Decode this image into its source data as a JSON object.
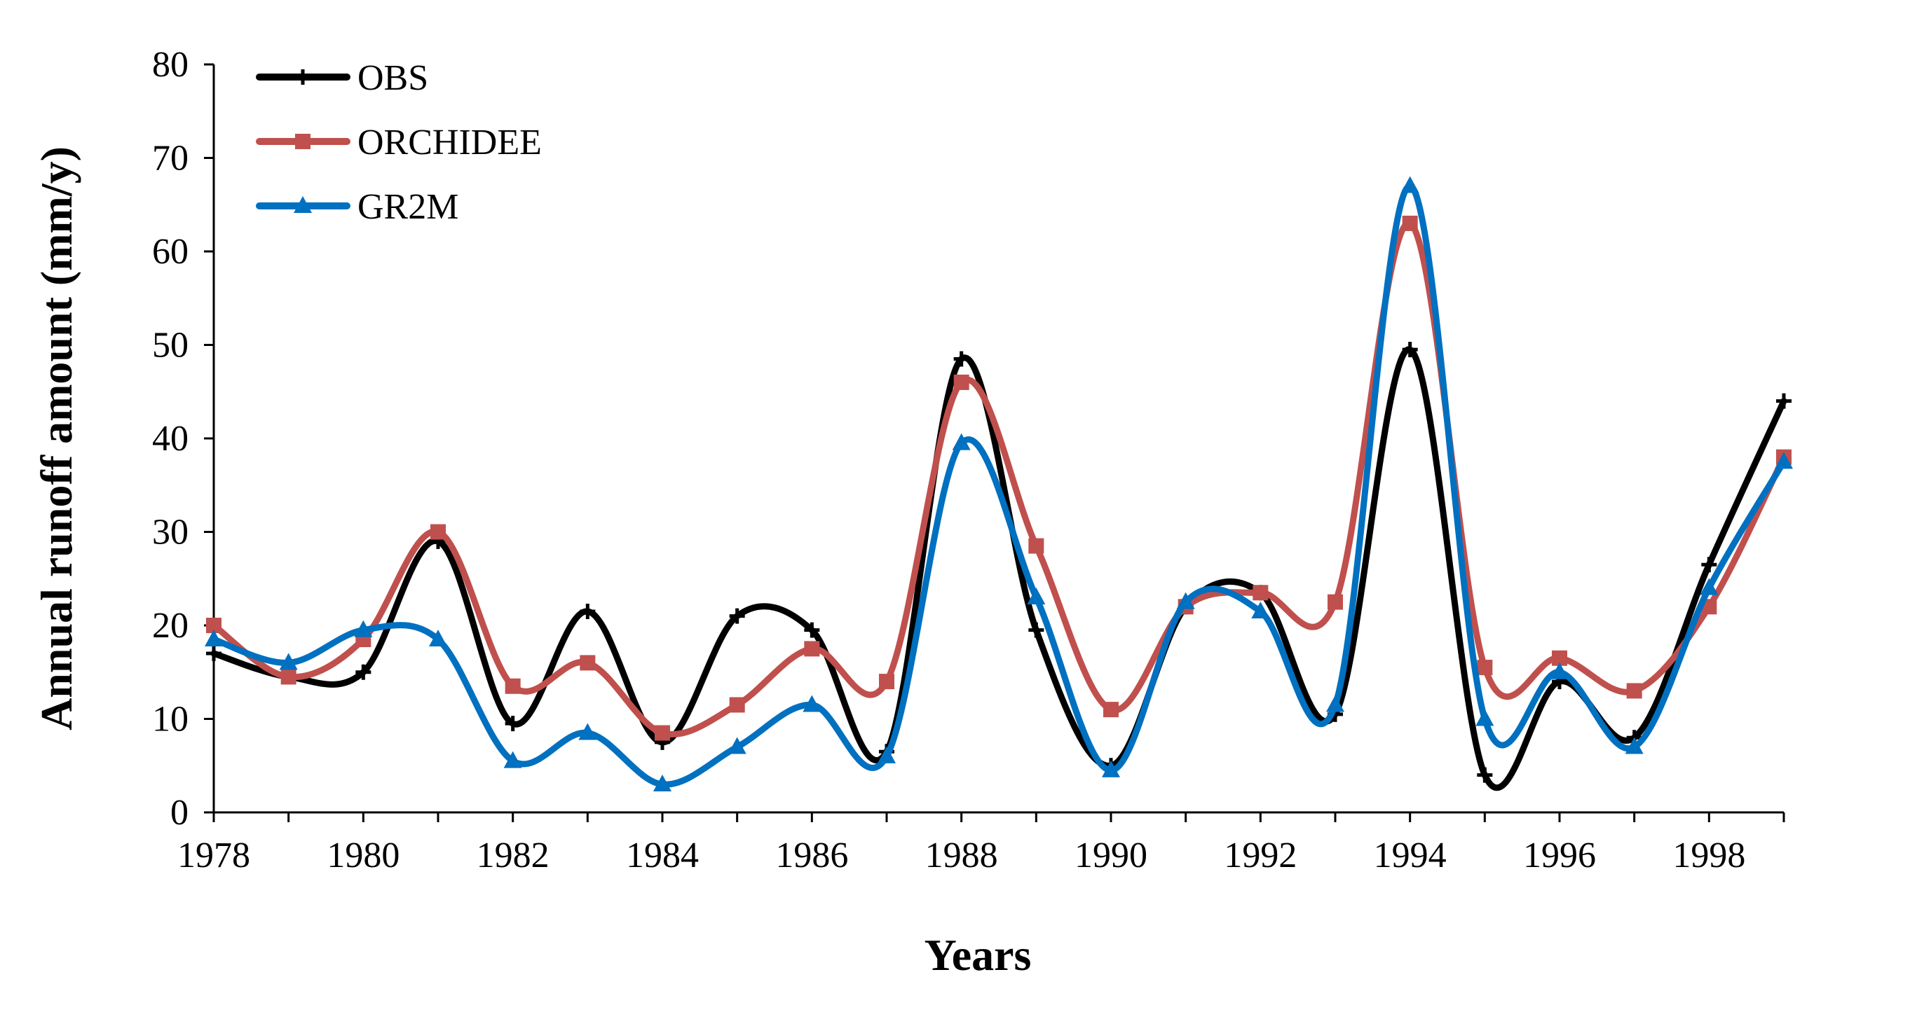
{
  "chart_data": {
    "type": "line",
    "title": "",
    "xlabel": "Years",
    "ylabel": "Annual runoff amount (mm/y)",
    "x": [
      1978,
      1979,
      1980,
      1981,
      1982,
      1983,
      1984,
      1985,
      1986,
      1987,
      1988,
      1989,
      1990,
      1991,
      1992,
      1993,
      1994,
      1995,
      1996,
      1997,
      1998,
      1999
    ],
    "xlim": [
      1978,
      1999
    ],
    "ylim": [
      0,
      80
    ],
    "x_ticks": [
      "1978",
      "1980",
      "1982",
      "1984",
      "1986",
      "1988",
      "1990",
      "1992",
      "1994",
      "1996",
      "1998"
    ],
    "y_ticks": [
      "0",
      "10",
      "20",
      "30",
      "40",
      "50",
      "60",
      "70",
      "80"
    ],
    "grid": false,
    "legend_position": "top-left",
    "series": [
      {
        "name": "OBS",
        "color": "#000000",
        "marker": "plus",
        "values": [
          17,
          14.5,
          15,
          29,
          9.5,
          21.5,
          7.5,
          21,
          19.5,
          6.5,
          48.5,
          19.5,
          5,
          22,
          23.5,
          10.5,
          49.5,
          4,
          14,
          8,
          26.5,
          44
        ]
      },
      {
        "name": "ORCHIDEE",
        "color": "#c0504d",
        "marker": "square",
        "values": [
          20,
          14.5,
          18.5,
          30,
          13.5,
          16,
          8.5,
          11.5,
          17.5,
          14,
          46,
          28.5,
          11,
          22,
          23.5,
          22.5,
          63,
          15.5,
          16.5,
          13,
          22,
          38
        ]
      },
      {
        "name": "GR2M",
        "color": "#0070c0",
        "marker": "triangle",
        "values": [
          18.5,
          16,
          19.5,
          18.5,
          5.5,
          8.5,
          3,
          7,
          11.5,
          6,
          39.5,
          23,
          4.5,
          22.5,
          21.5,
          11.5,
          67,
          10,
          15,
          7,
          24,
          37.5
        ]
      }
    ]
  }
}
